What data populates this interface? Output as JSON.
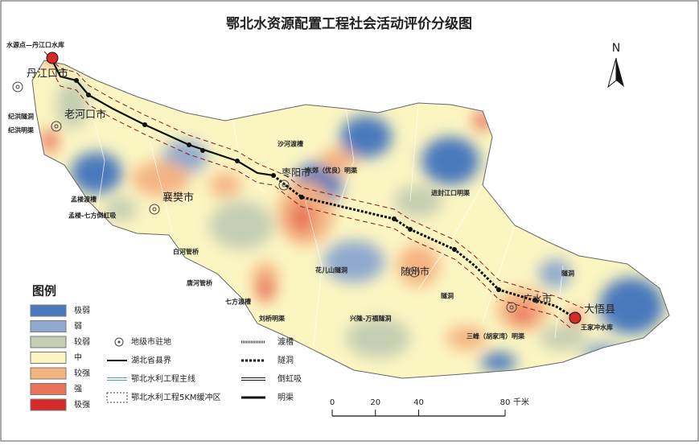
{
  "title": "鄂北水资源配置工程社会活动评价分级图",
  "north": "N",
  "map_labels": [
    "水源点—丹江口水库",
    "丹江口市",
    "老河口市",
    "纪洪隧洞",
    "纪洪明渠",
    "孟楼渡槽",
    "孟楼-七方倒虹吸",
    "襄樊市",
    "白河管桥",
    "唐河管桥",
    "七方渡槽",
    "刘桥明渠",
    "沙河渡槽",
    "枣阳市",
    "东郊（优良）明渠",
    "进封江口明渠",
    "花儿山隧洞",
    "兴隆-万福隧洞",
    "随州市",
    "隧洞",
    "三峰（胡家湾）明渠",
    "广水市",
    "隧洞",
    "大悟县",
    "王家冲水库"
  ],
  "legend": {
    "title": "图例",
    "classes": [
      {
        "label": "极弱",
        "color": "#4a78bd"
      },
      {
        "label": "弱",
        "color": "#8fa9cf"
      },
      {
        "label": "较弱",
        "color": "#c5ceb2"
      },
      {
        "label": "中",
        "color": "#fbf5c2"
      },
      {
        "label": "较强",
        "color": "#f4b482"
      },
      {
        "label": "强",
        "color": "#e8735a"
      },
      {
        "label": "极强",
        "color": "#d42a2a"
      }
    ]
  },
  "symbols": [
    "地级市驻地",
    "湖北省县界",
    "鄂北水利工程主线",
    "鄂北水利工程5KM缓冲区",
    "渡槽",
    "隧洞",
    "倒虹吸",
    "明渠"
  ],
  "scale": {
    "ticks": [
      0,
      20,
      40,
      80
    ],
    "unit": "千米"
  }
}
